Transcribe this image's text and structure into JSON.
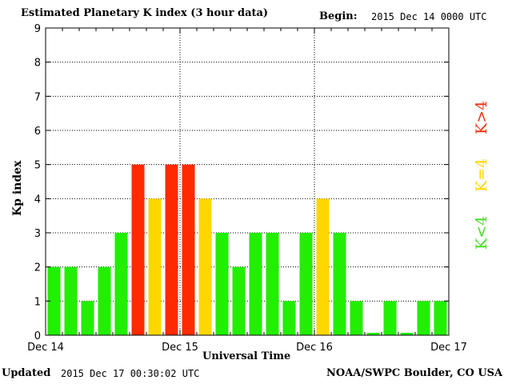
{
  "header": {
    "title": "Estimated Planetary K index (3 hour data)",
    "begin_label": "Begin:",
    "begin_value": "2015 Dec 14 0000 UTC"
  },
  "footer": {
    "updated_label": "Updated",
    "updated_value": "2015 Dec 17 00:30:02 UTC",
    "credit": "NOAA/SWPC Boulder, CO USA"
  },
  "legend": {
    "low": "K<4",
    "equal": "K=4",
    "high": "K>4"
  },
  "colors": {
    "low": "#22ee00",
    "equal": "#ffd700",
    "high": "#ff2a00",
    "legend_low": "#44dd22",
    "legend_equal": "#ffd700",
    "legend_high": "#ee3311"
  },
  "chart_data": {
    "type": "bar",
    "title": "Estimated Planetary K index (3 hour data)",
    "xlabel": "Universal Time",
    "ylabel": "Kp index",
    "ylim": [
      0,
      9
    ],
    "yticks": [
      0,
      1,
      2,
      3,
      4,
      5,
      6,
      7,
      8,
      9
    ],
    "x_tick_labels": [
      "Dec 14",
      "Dec 15",
      "Dec 16",
      "Dec 17"
    ],
    "interval_hours": 3,
    "grid": true,
    "values": [
      2,
      2,
      1,
      2,
      3,
      5,
      4,
      5,
      5,
      4,
      3,
      2,
      3,
      3,
      1,
      3,
      4,
      3,
      1,
      0.07,
      1,
      0.07,
      1,
      1
    ]
  }
}
